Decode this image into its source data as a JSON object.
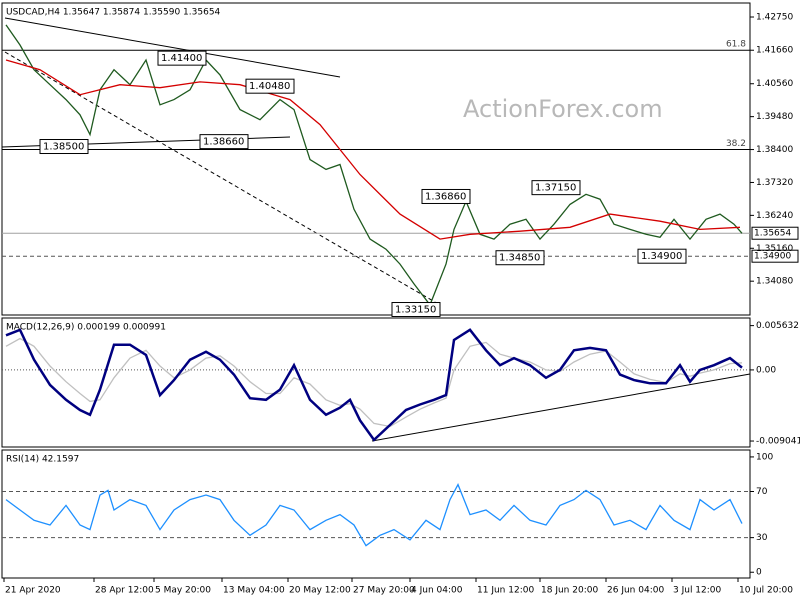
{
  "chart_data": [
    {
      "type": "line",
      "title": "USDCAD,H4  1.35647 1.35874 1.35590 1.35654",
      "watermark": "ActionForex.com",
      "xlim": [
        0,
        374
      ],
      "ylim": [
        1.3297,
        1.4321
      ],
      "yticks": [
        {
          "value": 1.4275,
          "label": "1.42750"
        },
        {
          "value": 1.4166,
          "label": "1.41660"
        },
        {
          "value": 1.4056,
          "label": "1.40560"
        },
        {
          "value": 1.3948,
          "label": "1.39480"
        },
        {
          "value": 1.384,
          "label": "1.38400"
        },
        {
          "value": 1.3732,
          "label": "1.37320"
        },
        {
          "value": 1.3624,
          "label": "1.36240"
        },
        {
          "value": 1.3516,
          "label": "1.35160"
        },
        {
          "value": 1.3408,
          "label": "1.34080"
        }
      ],
      "levels": [
        {
          "value": 1.4166,
          "label": "61.8",
          "style": "solid"
        },
        {
          "value": 1.384,
          "label": "38.2",
          "style": "solid"
        },
        {
          "value": 1.35654,
          "label": "1.35654",
          "style": "current"
        },
        {
          "value": 1.349,
          "label": "1.34900",
          "style": "dashed"
        }
      ],
      "annotations": [
        {
          "x": 78,
          "value": 1.414,
          "label": "1.41400"
        },
        {
          "x": 122,
          "value": 1.4048,
          "label": "1.40480"
        },
        {
          "x": 19,
          "value": 1.385,
          "label": "1.38500"
        },
        {
          "x": 99,
          "value": 1.3866,
          "label": "1.38660"
        },
        {
          "x": 210,
          "value": 1.3686,
          "label": "1.36860"
        },
        {
          "x": 265,
          "value": 1.3715,
          "label": "1.37150"
        },
        {
          "x": 247,
          "value": 1.3485,
          "label": "1.34850"
        },
        {
          "x": 318,
          "value": 1.349,
          "label": "1.34900"
        },
        {
          "x": 195,
          "value": 1.3315,
          "label": "1.33150"
        }
      ],
      "series": [
        {
          "color": "#1f5a1f",
          "x": [
            2,
            9,
            16,
            24,
            32,
            39,
            44,
            49,
            56,
            64,
            72,
            79,
            86,
            94,
            102,
            109,
            119,
            129,
            139,
            146,
            154,
            162,
            169,
            176,
            184,
            192,
            199,
            206,
            214,
            222,
            226,
            232,
            239,
            246,
            254,
            262,
            269,
            276,
            284,
            292,
            299,
            306,
            314,
            322,
            329,
            336,
            344,
            352,
            359,
            366,
            370
          ],
          "values": [
            1.4249,
            1.4183,
            1.4102,
            1.4053,
            1.4004,
            1.3954,
            1.3889,
            1.4036,
            1.4102,
            1.4053,
            1.4134,
            1.3987,
            1.4004,
            1.4036,
            1.4134,
            1.4085,
            1.3971,
            1.3938,
            1.4004,
            1.3971,
            1.3807,
            1.3775,
            1.3791,
            1.3644,
            1.3546,
            1.3513,
            1.3464,
            1.3399,
            1.333,
            1.3464,
            1.3578,
            1.367,
            1.3562,
            1.3546,
            1.3595,
            1.3611,
            1.3546,
            1.3595,
            1.366,
            1.3693,
            1.3677,
            1.3595,
            1.3578,
            1.3562,
            1.3552,
            1.3611,
            1.3546,
            1.3611,
            1.3628,
            1.3595,
            1.3565
          ]
        },
        {
          "color": "#d40000",
          "x": [
            2,
            19,
            39,
            59,
            79,
            99,
            119,
            144,
            159,
            179,
            199,
            219,
            234,
            259,
            284,
            304,
            329,
            349,
            369
          ],
          "values": [
            1.4134,
            1.4102,
            1.402,
            1.4053,
            1.4043,
            1.4062,
            1.4053,
            1.4004,
            1.3922,
            1.3758,
            1.3628,
            1.3546,
            1.3562,
            1.3572,
            1.3585,
            1.3628,
            1.3605,
            1.3578,
            1.3585
          ]
        }
      ]
    },
    {
      "type": "line",
      "title": "MACD(12,26,9) 0.000199 0.000991",
      "xlim": [
        0,
        374
      ],
      "ylim": [
        -0.0098,
        0.0066
      ],
      "yticks": [
        0.005632,
        {
          "value": 0,
          "label": "0.00"
        },
        -0.009041
      ],
      "levels": [
        {
          "value": 0,
          "style": "dotted"
        }
      ],
      "series": [
        {
          "color": "#c0c0c0",
          "x": [
            2,
            9,
            16,
            24,
            32,
            39,
            44,
            49,
            56,
            64,
            72,
            79,
            86,
            94,
            102,
            109,
            116,
            124,
            132,
            139,
            146,
            154,
            162,
            169,
            174,
            179,
            186,
            194,
            202,
            209,
            216,
            222,
            226,
            234,
            242,
            249,
            256,
            264,
            272,
            279,
            286,
            294,
            302,
            309,
            316,
            324,
            332,
            339,
            344,
            349,
            356,
            364,
            370
          ],
          "values": [
            0.003,
            0.004,
            0.003,
            0.0005,
            -0.0015,
            -0.003,
            -0.004,
            -0.0038,
            -0.001,
            0.0015,
            0.0025,
            0.0005,
            -0.001,
            0,
            0.0015,
            0.0018,
            0.0005,
            -0.0015,
            -0.003,
            -0.003,
            -0.001,
            -0.0018,
            -0.0038,
            -0.0045,
            -0.0043,
            -0.005,
            -0.0068,
            -0.0072,
            -0.006,
            -0.005,
            -0.0042,
            -0.0036,
            0,
            0.003,
            0.0035,
            0.002,
            0.0015,
            0.001,
            0,
            -0.0002,
            0.001,
            0.002,
            0.0024,
            0.001,
            -0.0005,
            -0.0012,
            -0.0016,
            -0.0005,
            -0.0008,
            -0.0004,
            0,
            0.0008,
            0.0009
          ]
        },
        {
          "color": "#000080",
          "x": [
            2,
            9,
            16,
            24,
            32,
            39,
            44,
            49,
            56,
            64,
            72,
            79,
            86,
            94,
            102,
            109,
            116,
            124,
            132,
            139,
            146,
            154,
            162,
            169,
            174,
            179,
            186,
            194,
            202,
            209,
            216,
            222,
            226,
            234,
            242,
            249,
            256,
            264,
            272,
            279,
            286,
            294,
            302,
            309,
            316,
            324,
            332,
            339,
            344,
            349,
            356,
            364,
            370
          ],
          "values": [
            0.0044,
            0.0051,
            0.0013,
            -0.0019,
            -0.0038,
            -0.0051,
            -0.0057,
            -0.0025,
            0.0032,
            0.0032,
            0.0019,
            -0.0032,
            -0.0013,
            0.0013,
            0.0023,
            0.0013,
            -0.0006,
            -0.0036,
            -0.0038,
            -0.0025,
            0.0006,
            -0.0038,
            -0.0057,
            -0.0048,
            -0.0038,
            -0.0064,
            -0.0089,
            -0.007,
            -0.0051,
            -0.0044,
            -0.0038,
            -0.0032,
            0.0038,
            0.0051,
            0.0025,
            0.0006,
            0.0015,
            0.0006,
            -0.001,
            0,
            0.0025,
            0.0028,
            0.0025,
            -0.0006,
            -0.0013,
            -0.0017,
            -0.0017,
            0.0006,
            -0.0015,
            0,
            0.0006,
            0.0015,
            0.0003
          ]
        }
      ]
    },
    {
      "type": "line",
      "title": "RSI(14) 42.1597",
      "xlim": [
        0,
        374
      ],
      "ylim": [
        -5,
        106
      ],
      "yticks": [
        100,
        70,
        30,
        0
      ],
      "levels": [
        {
          "value": 70,
          "style": "dashed"
        },
        {
          "value": 30,
          "style": "dashed"
        }
      ],
      "xticks": [
        {
          "value": 1,
          "label": "21 Apr 2020"
        },
        {
          "value": 46,
          "label": "28 Apr 12:00"
        },
        {
          "value": 76,
          "label": "5 May 20:00"
        },
        {
          "value": 110,
          "label": "13 May 04:00"
        },
        {
          "value": 143,
          "label": "20 May 12:00"
        },
        {
          "value": 175,
          "label": "27 May 20:00"
        },
        {
          "value": 204,
          "label": "4 Jun 04:00"
        },
        {
          "value": 237,
          "label": "11 Jun 12:00"
        },
        {
          "value": 269,
          "label": "18 Jun 20:00"
        },
        {
          "value": 302,
          "label": "26 Jun 04:00"
        },
        {
          "value": 335,
          "label": "3 Jul 12:00"
        },
        {
          "value": 368,
          "label": "10 Jul 20:00"
        }
      ],
      "series": [
        {
          "color": "#1e90ff",
          "x": [
            2,
            9,
            16,
            24,
            32,
            39,
            44,
            49,
            53,
            56,
            64,
            72,
            79,
            86,
            94,
            102,
            109,
            116,
            124,
            132,
            139,
            146,
            154,
            162,
            169,
            176,
            182,
            189,
            196,
            204,
            212,
            219,
            224,
            228,
            234,
            242,
            249,
            256,
            264,
            272,
            279,
            286,
            292,
            299,
            306,
            314,
            322,
            329,
            336,
            344,
            349,
            356,
            364,
            370
          ],
          "values": [
            63,
            54,
            45,
            41,
            58,
            41,
            37,
            67,
            71,
            54,
            63,
            58,
            37,
            54,
            63,
            67,
            63,
            45,
            32,
            41,
            58,
            54,
            37,
            45,
            50,
            41,
            23,
            32,
            37,
            28,
            45,
            37,
            63,
            76,
            50,
            54,
            45,
            58,
            45,
            41,
            58,
            63,
            71,
            63,
            41,
            45,
            37,
            58,
            45,
            37,
            63,
            54,
            63,
            42.1597
          ]
        }
      ]
    }
  ]
}
